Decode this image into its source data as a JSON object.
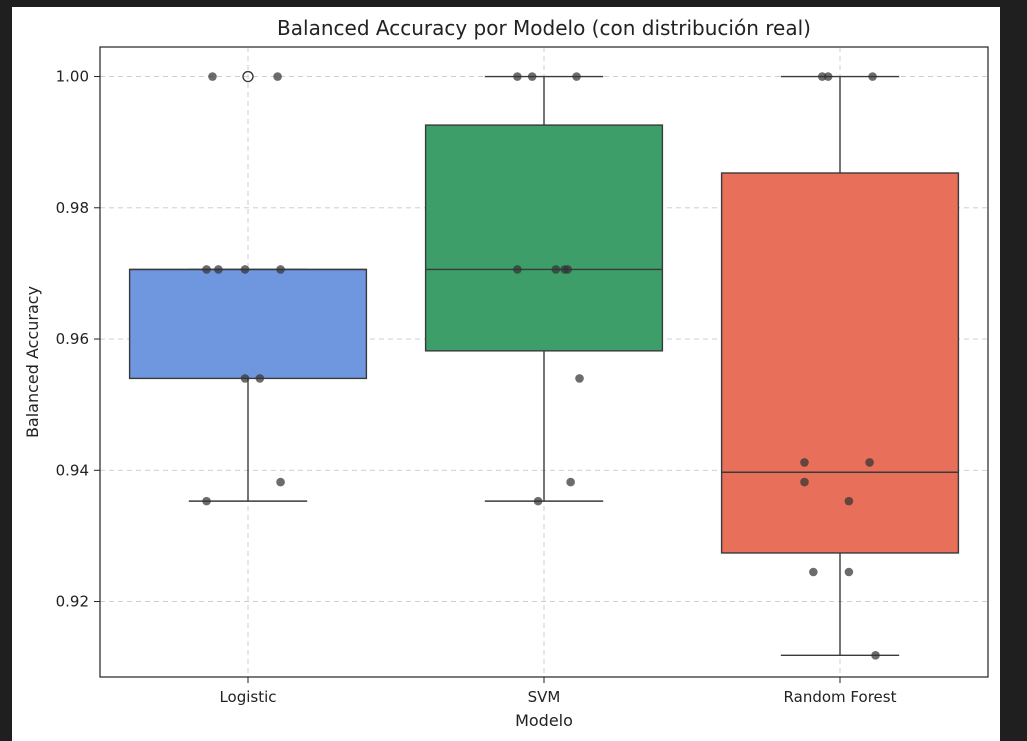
{
  "chart_data": {
    "type": "box",
    "title": "Balanced Accuracy por Modelo (con distribución real)",
    "xlabel": "Modelo",
    "ylabel": "Balanced Accuracy",
    "ylim": [
      0.9085,
      1.0045
    ],
    "yticks": [
      0.92,
      0.94,
      0.96,
      0.98,
      1.0
    ],
    "ytick_labels": [
      "0.92",
      "0.94",
      "0.96",
      "0.98",
      "1.00"
    ],
    "grid": true,
    "categories": [
      "Logistic",
      "SVM",
      "Random Forest"
    ],
    "series": [
      {
        "category": "Logistic",
        "color": "#6f97e0",
        "q1": 0.954,
        "median": 0.9706,
        "q3": 0.9706,
        "whisker_low": 0.9353,
        "whisker_high": 0.9706,
        "outliers": [
          1.0
        ],
        "points": [
          1.0,
          1.0,
          0.9706,
          0.9706,
          0.9706,
          0.9706,
          0.954,
          0.954,
          0.9382,
          0.9353
        ],
        "jitter": [
          -0.12,
          0.1,
          -0.14,
          -0.1,
          -0.01,
          0.11,
          -0.01,
          0.04,
          0.11,
          -0.14
        ]
      },
      {
        "category": "SVM",
        "color": "#3d9e6a",
        "q1": 0.9582,
        "median": 0.9706,
        "q3": 0.9926,
        "whisker_low": 0.9353,
        "whisker_high": 1.0,
        "outliers": [],
        "points": [
          1.0,
          1.0,
          1.0,
          0.9706,
          0.9706,
          0.9706,
          0.9706,
          0.954,
          0.9382,
          0.9353
        ],
        "jitter": [
          -0.09,
          -0.04,
          0.11,
          -0.09,
          0.04,
          0.07,
          0.08,
          0.12,
          0.09,
          -0.02
        ],
        "outlier_points": []
      },
      {
        "category": "Random Forest",
        "color": "#e8705a",
        "q1": 0.9274,
        "median": 0.9397,
        "q3": 0.9853,
        "whisker_low": 0.9118,
        "whisker_high": 1.0,
        "outliers": [],
        "points": [
          1.0,
          1.0,
          1.0,
          0.9412,
          0.9412,
          0.9382,
          0.9353,
          0.9245,
          0.9245,
          0.9118
        ],
        "jitter": [
          -0.06,
          -0.04,
          0.11,
          -0.12,
          0.1,
          -0.12,
          0.03,
          -0.09,
          0.03,
          0.12
        ]
      }
    ]
  }
}
